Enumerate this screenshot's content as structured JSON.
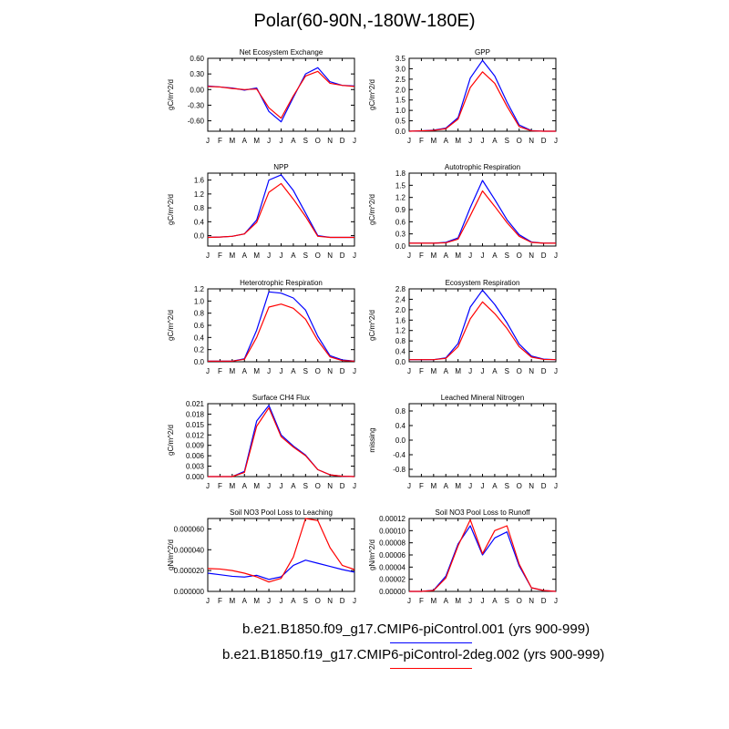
{
  "title": "Polar(60-90N,-180W-180E)",
  "legend": [
    {
      "name": "b.e21.B1850.f09_g17.CMIP6-piControl.001 (yrs 900-999)",
      "color": "#0000ff"
    },
    {
      "name": "b.e21.B1850.f19_g17.CMIP6-piControl-2deg.002 (yrs 900-999)",
      "color": "#ff0000"
    }
  ],
  "chart_data": [
    {
      "type": "line",
      "title": "Net Ecosystem Exchange",
      "ylabel": "gC/m^2/d",
      "x": [
        "J",
        "F",
        "M",
        "A",
        "M",
        "J",
        "J",
        "A",
        "S",
        "O",
        "N",
        "D",
        "J"
      ],
      "ylim": [
        -0.8,
        0.6
      ],
      "yticks": [
        -0.6,
        -0.3,
        0.0,
        0.3,
        0.6
      ],
      "ytick_labels": [
        "-0.60",
        "-0.30",
        "0.00",
        "0.30",
        "0.60"
      ],
      "series": [
        {
          "color": "#0000ff",
          "values": [
            0.07,
            0.05,
            0.03,
            -0.01,
            0.03,
            -0.42,
            -0.62,
            -0.15,
            0.3,
            0.42,
            0.15,
            0.08,
            0.07
          ]
        },
        {
          "color": "#ff0000",
          "values": [
            0.06,
            0.05,
            0.02,
            0.0,
            0.01,
            -0.35,
            -0.55,
            -0.12,
            0.26,
            0.35,
            0.12,
            0.08,
            0.06
          ]
        }
      ]
    },
    {
      "type": "line",
      "title": "GPP",
      "ylabel": "gC/m^2/d",
      "x": [
        "J",
        "F",
        "M",
        "A",
        "M",
        "J",
        "J",
        "A",
        "S",
        "O",
        "N",
        "D",
        "J"
      ],
      "ylim": [
        0,
        3.5
      ],
      "yticks": [
        0,
        0.5,
        1.0,
        1.5,
        2.0,
        2.5,
        3.0,
        3.5
      ],
      "ytick_labels": [
        "0.0",
        "0.5",
        "1.0",
        "1.5",
        "2.0",
        "2.5",
        "3.0",
        "3.5"
      ],
      "series": [
        {
          "color": "#0000ff",
          "values": [
            0.0,
            0.02,
            0.05,
            0.15,
            0.65,
            2.55,
            3.4,
            2.65,
            1.4,
            0.3,
            0.03,
            0.0,
            0.0
          ]
        },
        {
          "color": "#ff0000",
          "values": [
            0.0,
            0.02,
            0.04,
            0.12,
            0.58,
            2.1,
            2.85,
            2.3,
            1.2,
            0.22,
            0.02,
            0.0,
            0.0
          ]
        }
      ]
    },
    {
      "type": "line",
      "title": "NPP",
      "ylabel": "gC/m^2/d",
      "x": [
        "J",
        "F",
        "M",
        "A",
        "M",
        "J",
        "J",
        "A",
        "S",
        "O",
        "N",
        "D",
        "J"
      ],
      "ylim": [
        -0.3,
        1.8
      ],
      "yticks": [
        0.0,
        0.4,
        0.8,
        1.2,
        1.6
      ],
      "ytick_labels": [
        "0.0",
        "0.4",
        "0.8",
        "1.2",
        "1.6"
      ],
      "series": [
        {
          "color": "#0000ff",
          "values": [
            -0.05,
            -0.04,
            -0.02,
            0.05,
            0.45,
            1.6,
            1.75,
            1.3,
            0.65,
            0.0,
            -0.05,
            -0.05,
            -0.05
          ]
        },
        {
          "color": "#ff0000",
          "values": [
            -0.05,
            -0.04,
            -0.02,
            0.05,
            0.38,
            1.25,
            1.5,
            1.05,
            0.55,
            -0.02,
            -0.05,
            -0.05,
            -0.05
          ]
        }
      ]
    },
    {
      "type": "line",
      "title": "Autotrophic Respiration",
      "ylabel": "gC/m^2/d",
      "x": [
        "J",
        "F",
        "M",
        "A",
        "M",
        "J",
        "J",
        "A",
        "S",
        "O",
        "N",
        "D",
        "J"
      ],
      "ylim": [
        0,
        1.8
      ],
      "yticks": [
        0,
        0.3,
        0.6,
        0.9,
        1.2,
        1.5,
        1.8
      ],
      "ytick_labels": [
        "0.0",
        "0.3",
        "0.6",
        "0.9",
        "1.2",
        "1.5",
        "1.8"
      ],
      "series": [
        {
          "color": "#0000ff",
          "values": [
            0.07,
            0.07,
            0.07,
            0.09,
            0.2,
            0.95,
            1.62,
            1.15,
            0.65,
            0.28,
            0.1,
            0.07,
            0.07
          ]
        },
        {
          "color": "#ff0000",
          "values": [
            0.07,
            0.07,
            0.07,
            0.08,
            0.17,
            0.75,
            1.36,
            0.98,
            0.58,
            0.24,
            0.09,
            0.07,
            0.07
          ]
        }
      ]
    },
    {
      "type": "line",
      "title": "Heterotrophic Respiration",
      "ylabel": "gC/m^2/d",
      "x": [
        "J",
        "F",
        "M",
        "A",
        "M",
        "J",
        "J",
        "A",
        "S",
        "O",
        "N",
        "D",
        "J"
      ],
      "ylim": [
        0,
        1.2
      ],
      "yticks": [
        0,
        0.2,
        0.4,
        0.6,
        0.8,
        1.0,
        1.2
      ],
      "ytick_labels": [
        "0.0",
        "0.2",
        "0.4",
        "0.6",
        "0.8",
        "1.0",
        "1.2"
      ],
      "series": [
        {
          "color": "#0000ff",
          "values": [
            0.01,
            0.01,
            0.01,
            0.05,
            0.52,
            1.15,
            1.13,
            1.05,
            0.85,
            0.42,
            0.1,
            0.03,
            0.01
          ]
        },
        {
          "color": "#ff0000",
          "values": [
            0.01,
            0.01,
            0.01,
            0.04,
            0.4,
            0.9,
            0.95,
            0.88,
            0.7,
            0.35,
            0.08,
            0.02,
            0.01
          ]
        }
      ]
    },
    {
      "type": "line",
      "title": "Ecosystem Respiration",
      "ylabel": "gC/m^2/d",
      "x": [
        "J",
        "F",
        "M",
        "A",
        "M",
        "J",
        "J",
        "A",
        "S",
        "O",
        "N",
        "D",
        "J"
      ],
      "ylim": [
        0,
        2.8
      ],
      "yticks": [
        0,
        0.4,
        0.8,
        1.2,
        1.6,
        2.0,
        2.4,
        2.8
      ],
      "ytick_labels": [
        "0.0",
        "0.4",
        "0.8",
        "1.2",
        "1.6",
        "2.0",
        "2.4",
        "2.8"
      ],
      "series": [
        {
          "color": "#0000ff",
          "values": [
            0.08,
            0.08,
            0.08,
            0.15,
            0.7,
            2.1,
            2.75,
            2.2,
            1.5,
            0.68,
            0.22,
            0.1,
            0.08
          ]
        },
        {
          "color": "#ff0000",
          "values": [
            0.08,
            0.08,
            0.08,
            0.13,
            0.58,
            1.65,
            2.3,
            1.85,
            1.28,
            0.58,
            0.18,
            0.09,
            0.08
          ]
        }
      ]
    },
    {
      "type": "line",
      "title": "Surface CH4 Flux",
      "ylabel": "gC/m^2/d",
      "x": [
        "J",
        "F",
        "M",
        "A",
        "M",
        "J",
        "J",
        "A",
        "S",
        "O",
        "N",
        "D",
        "J"
      ],
      "ylim": [
        0,
        0.021
      ],
      "yticks": [
        0,
        0.003,
        0.006,
        0.009,
        0.012,
        0.015,
        0.018,
        0.021
      ],
      "ytick_labels": [
        "0.000",
        "0.003",
        "0.006",
        "0.009",
        "0.012",
        "0.015",
        "0.018",
        "0.021"
      ],
      "series": [
        {
          "color": "#0000ff",
          "values": [
            0.0,
            0.0,
            0.0,
            0.0015,
            0.016,
            0.0205,
            0.012,
            0.0088,
            0.0062,
            0.002,
            0.0005,
            0.0001,
            0.0
          ]
        },
        {
          "color": "#ff0000",
          "values": [
            0.0,
            0.0,
            0.0,
            0.0012,
            0.0145,
            0.0198,
            0.0115,
            0.0085,
            0.006,
            0.002,
            0.0005,
            0.0001,
            0.0
          ]
        }
      ]
    },
    {
      "type": "line",
      "title": "Leached Mineral Nitrogen",
      "ylabel": "missing",
      "x": [
        "J",
        "F",
        "M",
        "A",
        "M",
        "J",
        "J",
        "A",
        "S",
        "O",
        "N",
        "D",
        "J"
      ],
      "ylim": [
        -1,
        1
      ],
      "yticks": [
        -0.8,
        -0.4,
        0.0,
        0.4,
        0.8
      ],
      "ytick_labels": [
        "-0.8",
        "-0.4",
        "0.0",
        "0.4",
        "0.8"
      ],
      "series": []
    },
    {
      "type": "line",
      "title": "Soil NO3 Pool Loss to Leaching",
      "ylabel": "gN/m^2/d",
      "x": [
        "J",
        "F",
        "M",
        "A",
        "M",
        "J",
        "J",
        "A",
        "S",
        "O",
        "N",
        "D",
        "J"
      ],
      "ylim": [
        0,
        7e-05
      ],
      "yticks": [
        0,
        2e-05,
        4e-05,
        6e-05
      ],
      "ytick_labels": [
        "0.000000",
        "0.000020",
        "0.000040",
        "0.000060"
      ],
      "series": [
        {
          "color": "#0000ff",
          "values": [
            1.75e-05,
            1.6e-05,
            1.45e-05,
            1.38e-05,
            1.55e-05,
            1.15e-05,
            1.4e-05,
            2.5e-05,
            3e-05,
            2.7e-05,
            2.4e-05,
            2.1e-05,
            1.85e-05
          ]
        },
        {
          "color": "#ff0000",
          "values": [
            2.2e-05,
            2.15e-05,
            2e-05,
            1.75e-05,
            1.4e-05,
            9e-06,
            1.25e-05,
            3.3e-05,
            7e-05,
            6.8e-05,
            4.2e-05,
            2.5e-05,
            2.1e-05
          ]
        }
      ]
    },
    {
      "type": "line",
      "title": "Soil NO3 Pool Loss to Runoff",
      "ylabel": "gN/m^2/d",
      "x": [
        "J",
        "F",
        "M",
        "A",
        "M",
        "J",
        "J",
        "A",
        "S",
        "O",
        "N",
        "D",
        "J"
      ],
      "ylim": [
        0,
        0.00012
      ],
      "yticks": [
        0,
        2e-05,
        4e-05,
        6e-05,
        8e-05,
        0.0001,
        0.00012
      ],
      "ytick_labels": [
        "0.00000",
        "0.00002",
        "0.00004",
        "0.00006",
        "0.00008",
        "0.00010",
        "0.00012"
      ],
      "series": [
        {
          "color": "#0000ff",
          "values": [
            0.0,
            0.0,
            2e-06,
            2.5e-05,
            7.8e-05,
            0.000108,
            6e-05,
            8.8e-05,
            9.8e-05,
            4.2e-05,
            6e-06,
            1.5e-06,
            0.0
          ]
        },
        {
          "color": "#ff0000",
          "values": [
            0.0,
            0.0,
            1.5e-06,
            2.2e-05,
            7.5e-05,
            0.000118,
            6.2e-05,
            0.0001,
            0.000108,
            4.5e-05,
            6e-06,
            1.5e-06,
            0.0
          ]
        }
      ]
    }
  ]
}
